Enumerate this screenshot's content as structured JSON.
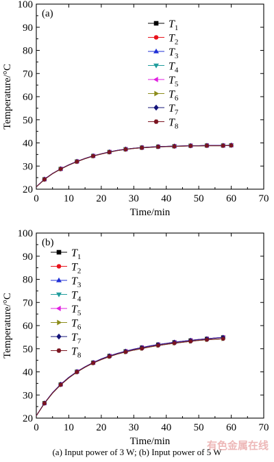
{
  "caption": "(a) Input power of 3 W; (b) Input power of 5 W",
  "watermark": "有色金属在线",
  "series_style": [
    {
      "name": "T1",
      "sym": "square",
      "color": "#000000"
    },
    {
      "name": "T2",
      "sym": "circle",
      "color": "#e8121b"
    },
    {
      "name": "T3",
      "sym": "triangle-up",
      "color": "#1f2fd6"
    },
    {
      "name": "T4",
      "sym": "triangle-down",
      "color": "#1e9c9c"
    },
    {
      "name": "T5",
      "sym": "triangle-left",
      "color": "#e020e0"
    },
    {
      "name": "T6",
      "sym": "triangle-right",
      "color": "#8c8c1a"
    },
    {
      "name": "T7",
      "sym": "diamond",
      "color": "#14147a"
    },
    {
      "name": "T8",
      "sym": "hexagon",
      "color": "#7a1420"
    }
  ],
  "chart_data": [
    {
      "type": "line",
      "panel_label": "(a)",
      "xlabel": "Time/min",
      "ylabel": "Temperature/°C",
      "xlim": [
        0,
        70
      ],
      "ylim": [
        20,
        100
      ],
      "xticks": [
        0,
        10,
        20,
        30,
        40,
        50,
        60,
        70
      ],
      "yticks": [
        20,
        30,
        40,
        50,
        60,
        70,
        80,
        90,
        100
      ],
      "x": [
        0,
        2.5,
        5,
        7.5,
        10,
        12.5,
        15,
        17.5,
        20,
        22.5,
        25,
        27.5,
        30,
        32.5,
        35,
        37.5,
        40,
        42.5,
        45,
        47.5,
        50,
        52.5,
        55,
        57.5,
        60
      ],
      "series": [
        {
          "name": "T1",
          "values": [
            21.0,
            24.3,
            26.8,
            28.8,
            30.5,
            32.0,
            33.3,
            34.4,
            35.3,
            36.1,
            36.8,
            37.3,
            37.7,
            38.0,
            38.2,
            38.4,
            38.5,
            38.6,
            38.7,
            38.8,
            38.8,
            38.9,
            38.9,
            38.9,
            39.0
          ]
        },
        {
          "name": "T2",
          "values": [
            21.0,
            24.2,
            26.7,
            28.7,
            30.4,
            31.9,
            33.2,
            34.3,
            35.2,
            36.0,
            36.7,
            37.2,
            37.6,
            37.9,
            38.1,
            38.3,
            38.4,
            38.5,
            38.6,
            38.7,
            38.7,
            38.8,
            38.8,
            38.8,
            38.9
          ]
        },
        {
          "name": "T3",
          "values": [
            21.0,
            24.3,
            26.8,
            28.8,
            30.5,
            32.0,
            33.3,
            34.4,
            35.3,
            36.1,
            36.8,
            37.3,
            37.7,
            38.0,
            38.2,
            38.4,
            38.5,
            38.6,
            38.7,
            38.8,
            38.8,
            38.9,
            38.9,
            38.9,
            39.0
          ]
        },
        {
          "name": "T4",
          "values": [
            21.0,
            24.2,
            26.7,
            28.7,
            30.4,
            31.9,
            33.2,
            34.3,
            35.2,
            36.0,
            36.7,
            37.2,
            37.6,
            37.9,
            38.1,
            38.3,
            38.4,
            38.5,
            38.6,
            38.7,
            38.7,
            38.8,
            38.8,
            38.8,
            38.9
          ]
        },
        {
          "name": "T5",
          "values": [
            21.0,
            24.3,
            26.8,
            28.8,
            30.5,
            32.0,
            33.3,
            34.4,
            35.3,
            36.1,
            36.8,
            37.3,
            37.7,
            38.0,
            38.2,
            38.4,
            38.5,
            38.6,
            38.7,
            38.8,
            38.8,
            38.9,
            38.9,
            38.9,
            39.0
          ]
        },
        {
          "name": "T6",
          "values": [
            21.0,
            24.2,
            26.7,
            28.7,
            30.4,
            31.9,
            33.2,
            34.3,
            35.2,
            36.0,
            36.7,
            37.2,
            37.6,
            37.9,
            38.1,
            38.3,
            38.4,
            38.5,
            38.6,
            38.7,
            38.7,
            38.8,
            38.8,
            38.8,
            38.9
          ]
        },
        {
          "name": "T7",
          "values": [
            21.0,
            24.3,
            26.8,
            28.8,
            30.5,
            32.0,
            33.3,
            34.4,
            35.3,
            36.1,
            36.8,
            37.3,
            37.7,
            38.0,
            38.2,
            38.4,
            38.5,
            38.6,
            38.7,
            38.8,
            38.8,
            38.9,
            38.9,
            38.9,
            39.0
          ]
        },
        {
          "name": "T8",
          "values": [
            21.0,
            24.2,
            26.7,
            28.7,
            30.4,
            31.9,
            33.2,
            34.3,
            35.2,
            36.0,
            36.7,
            37.2,
            37.6,
            37.9,
            38.1,
            38.3,
            38.4,
            38.5,
            38.6,
            38.7,
            38.7,
            38.8,
            38.8,
            38.8,
            38.9
          ]
        }
      ]
    },
    {
      "type": "line",
      "panel_label": "(b)",
      "xlabel": "Time/min",
      "ylabel": "Temperature/°C",
      "xlim": [
        0,
        70
      ],
      "ylim": [
        20,
        100
      ],
      "xticks": [
        0,
        10,
        20,
        30,
        40,
        50,
        60,
        70
      ],
      "yticks": [
        20,
        30,
        40,
        50,
        60,
        70,
        80,
        90,
        100
      ],
      "x": [
        0,
        2.5,
        5,
        7.5,
        10,
        12.5,
        15,
        17.5,
        20,
        22.5,
        25,
        27.5,
        30,
        32.5,
        35,
        37.5,
        40,
        42.5,
        45,
        47.5,
        50,
        52.5,
        55,
        57.5
      ],
      "series": [
        {
          "name": "T1",
          "values": [
            21.0,
            26.5,
            31.0,
            34.6,
            37.6,
            40.1,
            42.2,
            44.0,
            45.6,
            46.9,
            48.0,
            48.9,
            49.8,
            50.5,
            51.2,
            51.8,
            52.3,
            52.8,
            53.2,
            53.6,
            54.0,
            54.3,
            54.6,
            54.9
          ]
        },
        {
          "name": "T2",
          "values": [
            21.0,
            26.4,
            30.8,
            34.4,
            37.4,
            39.9,
            42.0,
            43.8,
            45.3,
            46.6,
            47.7,
            48.6,
            49.4,
            50.1,
            50.8,
            51.4,
            51.9,
            52.4,
            52.8,
            53.2,
            53.6,
            53.9,
            54.1,
            54.3
          ]
        },
        {
          "name": "T3",
          "values": [
            21.0,
            26.5,
            31.0,
            34.6,
            37.6,
            40.1,
            42.2,
            44.0,
            45.6,
            46.9,
            48.0,
            48.9,
            49.8,
            50.5,
            51.2,
            51.8,
            52.3,
            52.8,
            53.2,
            53.6,
            54.0,
            54.3,
            54.6,
            54.9
          ]
        },
        {
          "name": "T4",
          "values": [
            21.0,
            26.4,
            30.8,
            34.4,
            37.4,
            39.9,
            42.0,
            43.8,
            45.3,
            46.6,
            47.7,
            48.6,
            49.4,
            50.1,
            50.8,
            51.4,
            51.9,
            52.4,
            52.8,
            53.2,
            53.6,
            53.9,
            54.1,
            54.3
          ]
        },
        {
          "name": "T5",
          "values": [
            21.0,
            26.5,
            31.0,
            34.6,
            37.6,
            40.1,
            42.2,
            44.0,
            45.6,
            46.9,
            48.0,
            48.9,
            49.8,
            50.5,
            51.2,
            51.8,
            52.3,
            52.8,
            53.2,
            53.6,
            54.0,
            54.3,
            54.6,
            54.9
          ]
        },
        {
          "name": "T6",
          "values": [
            21.0,
            26.4,
            30.8,
            34.4,
            37.4,
            39.9,
            42.0,
            43.8,
            45.3,
            46.6,
            47.7,
            48.6,
            49.4,
            50.1,
            50.8,
            51.4,
            51.9,
            52.4,
            52.8,
            53.2,
            53.6,
            53.9,
            54.1,
            54.3
          ]
        },
        {
          "name": "T7",
          "values": [
            21.0,
            26.5,
            31.0,
            34.6,
            37.6,
            40.1,
            42.2,
            44.0,
            45.6,
            46.9,
            48.0,
            48.9,
            49.8,
            50.5,
            51.2,
            51.8,
            52.3,
            52.8,
            53.2,
            53.6,
            54.0,
            54.3,
            54.6,
            54.9
          ]
        },
        {
          "name": "T8",
          "values": [
            21.0,
            26.4,
            30.8,
            34.4,
            37.4,
            39.9,
            42.0,
            43.8,
            45.3,
            46.6,
            47.7,
            48.6,
            49.4,
            50.1,
            50.8,
            51.4,
            51.9,
            52.4,
            52.8,
            53.2,
            53.6,
            53.9,
            54.1,
            54.3
          ]
        }
      ]
    }
  ]
}
